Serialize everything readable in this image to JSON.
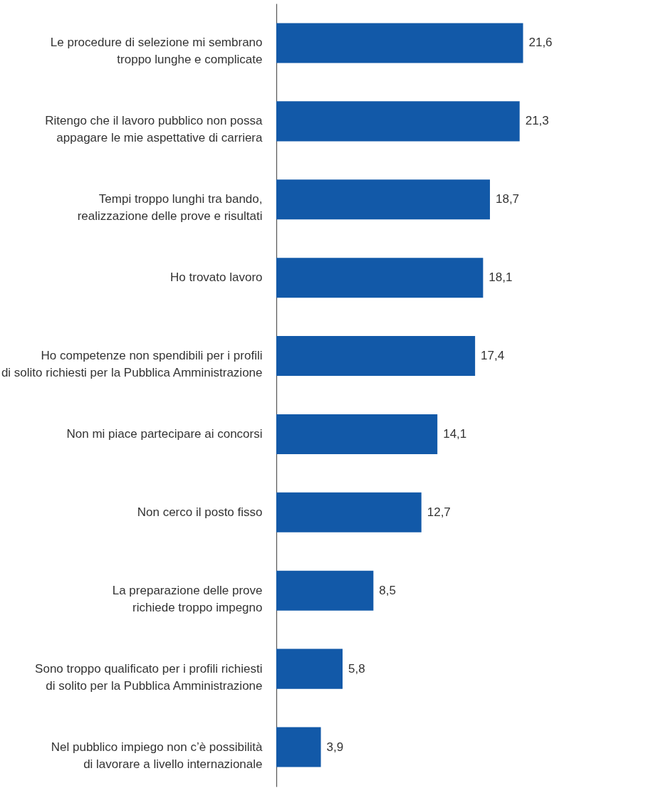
{
  "chart_data": {
    "type": "bar",
    "orientation": "horizontal",
    "categories": [
      "Le procedure di selezione mi sembrano\ntroppo lunghe e complicate",
      "Ritengo che il lavoro pubblico non possa\nappagare le mie aspettative di carriera",
      "Tempi troppo lunghi tra bando,\nrealizzazione delle prove e risultati",
      "Ho trovato lavoro",
      "Ho competenze non spendibili per i profili\ndi solito richiesti per la Pubblica Amministrazione",
      "Non mi piace partecipare ai concorsi",
      "Non cerco il posto fisso",
      "La preparazione delle prove\nrichiede troppo impegno",
      "Sono troppo qualificato per i profili richiesti\ndi solito per la Pubblica Amministrazione",
      "Nel pubblico impiego non c’è possibilità\ndi lavorare a livello internazionale"
    ],
    "values": [
      21.6,
      21.3,
      18.7,
      18.1,
      17.4,
      14.1,
      12.7,
      8.5,
      5.8,
      3.9
    ],
    "value_labels": [
      "21,6",
      "21,3",
      "18,7",
      "18,1",
      "17,4",
      "14,1",
      "12,7",
      "8,5",
      "5,8",
      "3,9"
    ],
    "color": "#1259a8",
    "grid": false,
    "tick_labels": "y"
  }
}
